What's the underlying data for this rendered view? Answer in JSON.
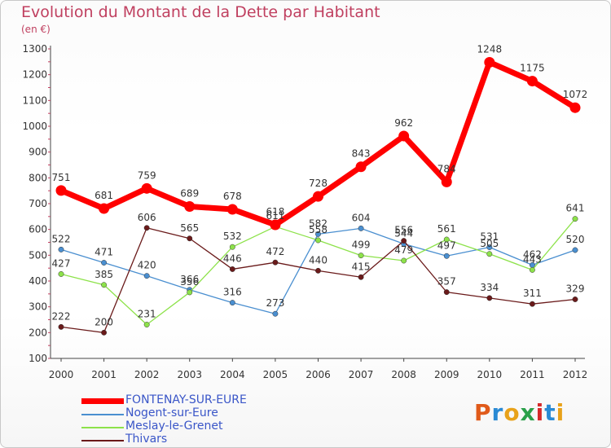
{
  "header": {
    "title": "Evolution du Montant de la Dette par Habitant",
    "unit": "(en €)"
  },
  "logo": {
    "text": "Proxiti",
    "letter_colors": [
      "#e05a1a",
      "#2a8ad4",
      "#e8a21a",
      "#2aa04a",
      "#d62a2a",
      "#2a8ad4",
      "#e8a21a"
    ]
  },
  "chart_data": {
    "type": "line",
    "x": [
      "2000",
      "2001",
      "2002",
      "2003",
      "2004",
      "2005",
      "2006",
      "2007",
      "2008",
      "2009",
      "2010",
      "2011",
      "2012"
    ],
    "ylim": [
      100,
      1300
    ],
    "yticks": [
      100,
      200,
      300,
      400,
      500,
      600,
      700,
      800,
      900,
      1000,
      1100,
      1200,
      1300
    ],
    "grid": false,
    "legend_position": "bottom-left",
    "series": [
      {
        "name": "FONTENAY-SUR-EURE",
        "color": "#ff0000",
        "values": [
          751,
          681,
          759,
          689,
          678,
          618,
          728,
          843,
          962,
          784,
          1248,
          1175,
          1072
        ]
      },
      {
        "name": "Nogent-sur-Eure",
        "color": "#4a8fd0",
        "values": [
          522,
          471,
          420,
          366,
          316,
          273,
          582,
          604,
          544,
          497,
          531,
          462,
          520
        ]
      },
      {
        "name": "Meslay-le-Grenet",
        "color": "#8de24a",
        "values": [
          427,
          385,
          231,
          356,
          532,
          611,
          558,
          499,
          479,
          561,
          505,
          443,
          641
        ]
      },
      {
        "name": "Thivars",
        "color": "#6a1a1a",
        "values": [
          222,
          200,
          606,
          565,
          446,
          472,
          440,
          415,
          556,
          357,
          334,
          311,
          329
        ]
      }
    ]
  }
}
